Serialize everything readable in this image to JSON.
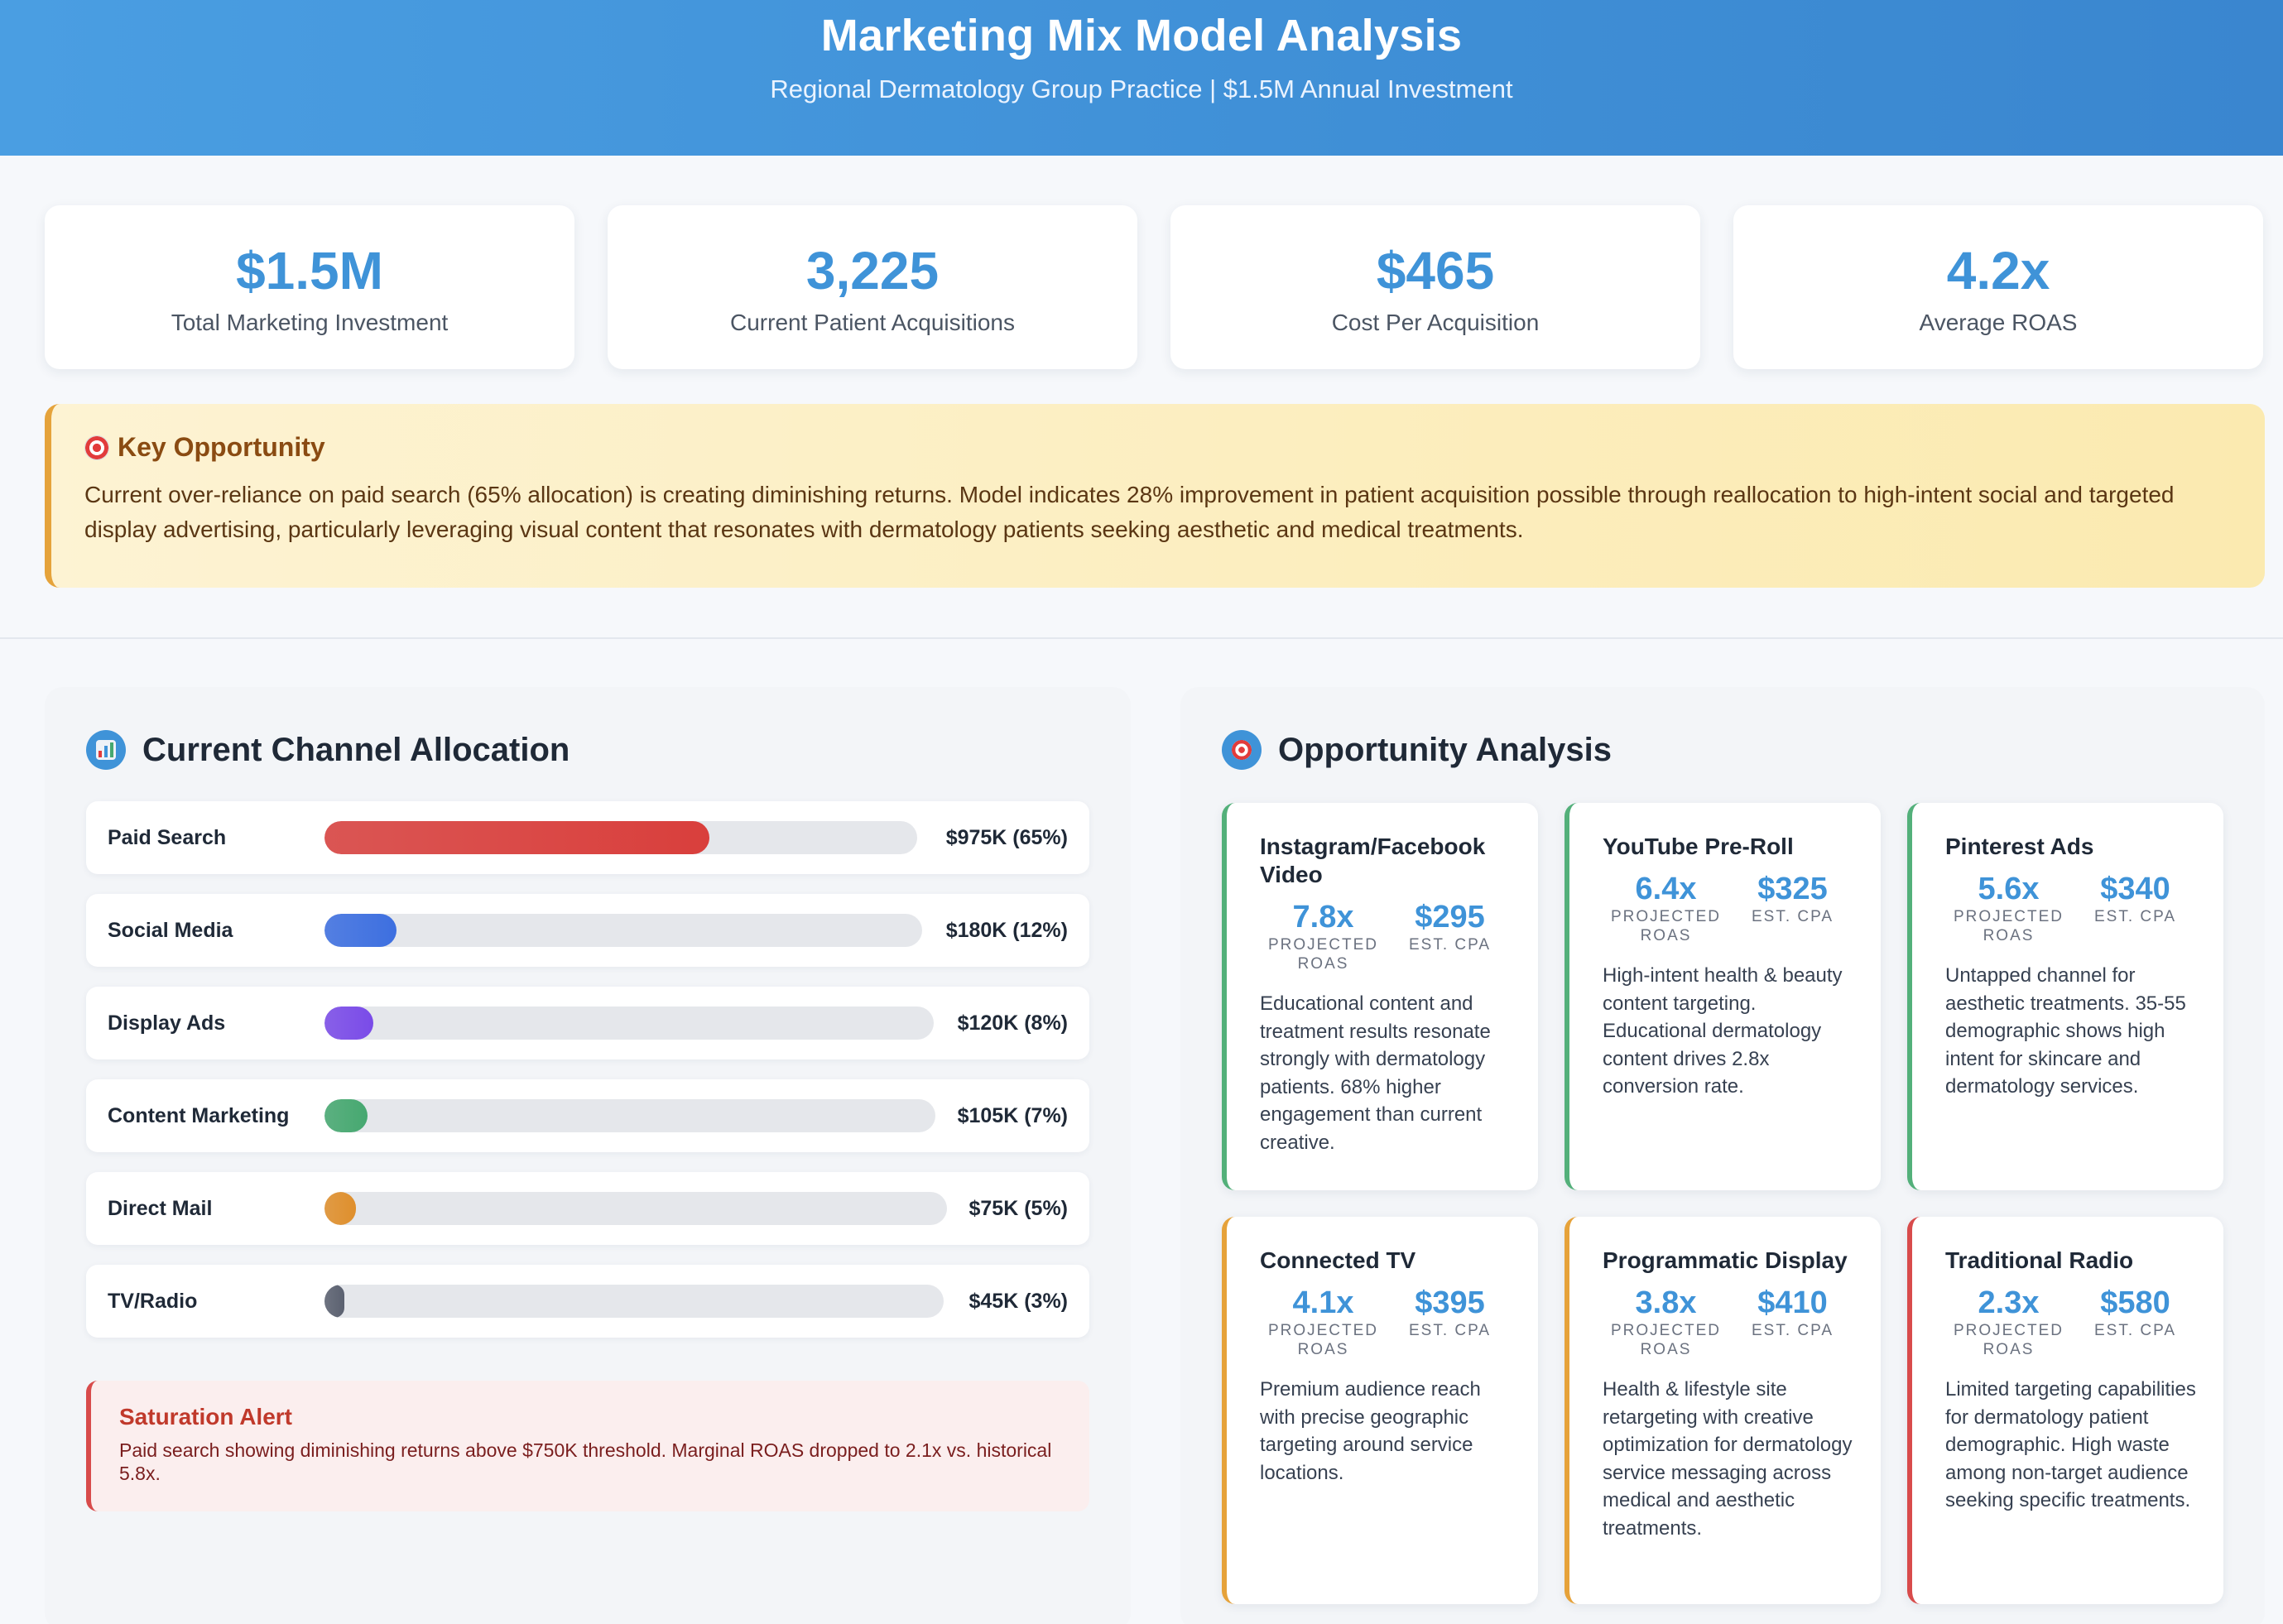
{
  "header": {
    "title": "Marketing Mix Model Analysis",
    "subtitle": "Regional Dermatology Group Practice | $1.5M Annual Investment"
  },
  "kpis": [
    {
      "value": "$1.5M",
      "label": "Total Marketing Investment"
    },
    {
      "value": "3,225",
      "label": "Current Patient Acquisitions"
    },
    {
      "value": "$465",
      "label": "Cost Per Acquisition"
    },
    {
      "value": "4.2x",
      "label": "Average ROAS"
    }
  ],
  "key_opportunity": {
    "icon": "target-icon",
    "title": "Key Opportunity",
    "text": "Current over-reliance on paid search (65% allocation) is creating diminishing returns. Model indicates 28% improvement in patient acquisition possible through reallocation to high-intent social and targeted display advertising, particularly leveraging visual content that resonates with dermatology patients seeking aesthetic and medical treatments."
  },
  "channel_allocation": {
    "icon": "bar-chart-icon",
    "title": "Current Channel Allocation",
    "channels": [
      {
        "name": "Paid Search",
        "value": "$975K (65%)",
        "percent": 65,
        "color": "#d93f3c"
      },
      {
        "name": "Social Media",
        "value": "$180K (12%)",
        "percent": 12,
        "color": "#3d6fe0"
      },
      {
        "name": "Display Ads",
        "value": "$120K (8%)",
        "percent": 8,
        "color": "#7a4be8"
      },
      {
        "name": "Content Marketing",
        "value": "$105K (7%)",
        "percent": 7,
        "color": "#46a870"
      },
      {
        "name": "Direct Mail",
        "value": "$75K (5%)",
        "percent": 5,
        "color": "#df8f2c"
      },
      {
        "name": "TV/Radio",
        "value": "$45K (3%)",
        "percent": 3,
        "color": "#5b6170"
      }
    ],
    "alert": {
      "title": "Saturation Alert",
      "text": "Paid search showing diminishing returns above $750K threshold. Marginal ROAS dropped to 2.1x vs. historical 5.8x."
    }
  },
  "opportunity_analysis": {
    "icon": "target-icon",
    "title": "Opportunity Analysis",
    "roas_label": "PROJECTED ROAS",
    "cpa_label": "EST. CPA",
    "cards": [
      {
        "title": "Instagram/Facebook Video",
        "roas": "7.8x",
        "cpa": "$295",
        "status": "green",
        "desc": "Educational content and treatment results resonate strongly with dermatology patients. 68% higher engagement than current creative."
      },
      {
        "title": "YouTube Pre-Roll",
        "roas": "6.4x",
        "cpa": "$325",
        "status": "green",
        "desc": "High-intent health & beauty content targeting. Educational dermatology content drives 2.8x conversion rate."
      },
      {
        "title": "Pinterest Ads",
        "roas": "5.6x",
        "cpa": "$340",
        "status": "green",
        "desc": "Untapped channel for aesthetic treatments. 35-55 demographic shows high intent for skincare and dermatology services."
      },
      {
        "title": "Connected TV",
        "roas": "4.1x",
        "cpa": "$395",
        "status": "orange",
        "desc": "Premium audience reach with precise geographic targeting around service locations."
      },
      {
        "title": "Programmatic Display",
        "roas": "3.8x",
        "cpa": "$410",
        "status": "orange",
        "desc": "Health & lifestyle site retargeting with creative optimization for dermatology service messaging across medical and aesthetic treatments."
      },
      {
        "title": "Traditional Radio",
        "roas": "2.3x",
        "cpa": "$580",
        "status": "red",
        "desc": "Limited targeting capabilities for dermatology patient demographic. High waste among non-target audience seeking specific treatments."
      }
    ]
  }
}
